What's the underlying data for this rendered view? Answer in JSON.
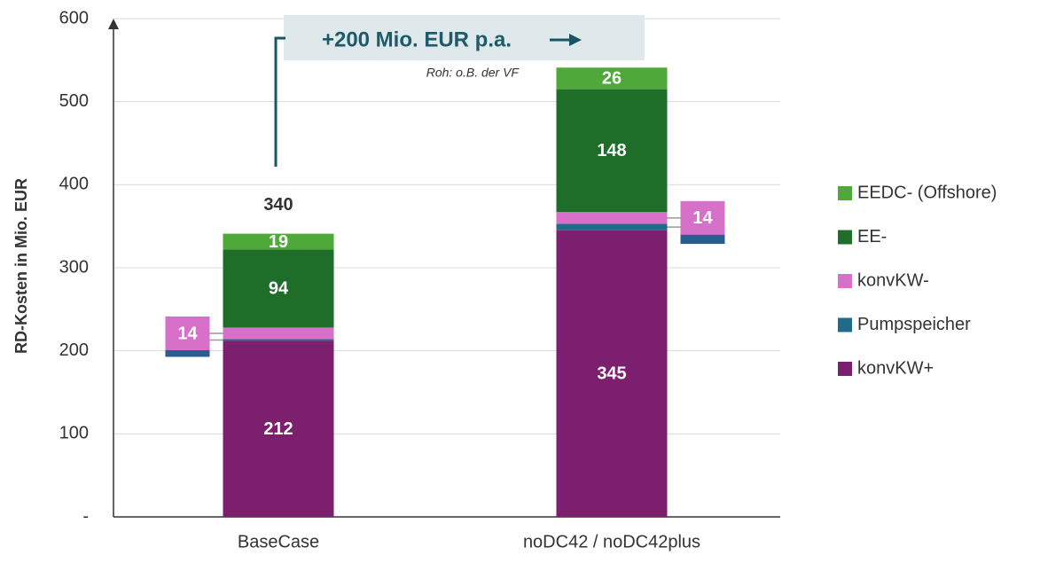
{
  "chart_data": {
    "type": "stacked_bar",
    "y_label": "RD-Kosten in Mio. EUR",
    "categories": [
      "BaseCase",
      "noDC42 / noDC42plus"
    ],
    "series": [
      {
        "name": "konvKW+",
        "color": "#7b1f6e",
        "values": [
          212,
          345
        ]
      },
      {
        "name": "Pumpspeicher",
        "color": "#1f6b8a",
        "values": [
          2,
          8
        ]
      },
      {
        "name": "konvKW-",
        "color": "#d670c8",
        "values": [
          14,
          14
        ]
      },
      {
        "name": "EE-",
        "color": "#1e6e2a",
        "values": [
          94,
          148
        ]
      },
      {
        "name": "EEDC- (Offshore)",
        "color": "#4fa83a",
        "values": [
          19,
          26
        ]
      }
    ],
    "totals": [
      340,
      541
    ],
    "annotation": "+200 Mio. EUR p.a.",
    "annotation_note": "Roh: o.B. der VF",
    "ylim": [
      0,
      600
    ],
    "yticks": [
      {
        "value": 0,
        "label": "-"
      },
      100,
      200,
      300,
      400,
      500,
      600
    ],
    "grid": true,
    "legend": "right"
  }
}
